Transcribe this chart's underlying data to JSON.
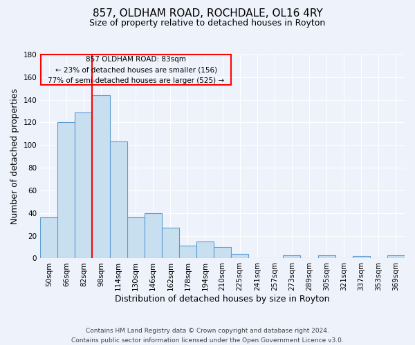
{
  "title": "857, OLDHAM ROAD, ROCHDALE, OL16 4RY",
  "subtitle": "Size of property relative to detached houses in Royton",
  "xlabel": "Distribution of detached houses by size in Royton",
  "ylabel": "Number of detached properties",
  "bar_labels": [
    "50sqm",
    "66sqm",
    "82sqm",
    "98sqm",
    "114sqm",
    "130sqm",
    "146sqm",
    "162sqm",
    "178sqm",
    "194sqm",
    "210sqm",
    "225sqm",
    "241sqm",
    "257sqm",
    "273sqm",
    "289sqm",
    "305sqm",
    "321sqm",
    "337sqm",
    "353sqm",
    "369sqm"
  ],
  "bar_values": [
    36,
    120,
    129,
    144,
    103,
    36,
    40,
    27,
    11,
    15,
    10,
    4,
    0,
    0,
    3,
    0,
    3,
    0,
    2,
    0,
    3
  ],
  "bar_color": "#c8dff0",
  "bar_edge_color": "#5b9bd5",
  "ylim": [
    0,
    180
  ],
  "yticks": [
    0,
    20,
    40,
    60,
    80,
    100,
    120,
    140,
    160,
    180
  ],
  "annotation_box_text": "857 OLDHAM ROAD: 83sqm\n← 23% of detached houses are smaller (156)\n77% of semi-detached houses are larger (525) →",
  "footer_line1": "Contains HM Land Registry data © Crown copyright and database right 2024.",
  "footer_line2": "Contains public sector information licensed under the Open Government Licence v3.0.",
  "background_color": "#eef2fb",
  "grid_color": "#ffffff",
  "title_fontsize": 11,
  "subtitle_fontsize": 9,
  "axis_label_fontsize": 9,
  "tick_fontsize": 7.5,
  "footer_fontsize": 6.5
}
